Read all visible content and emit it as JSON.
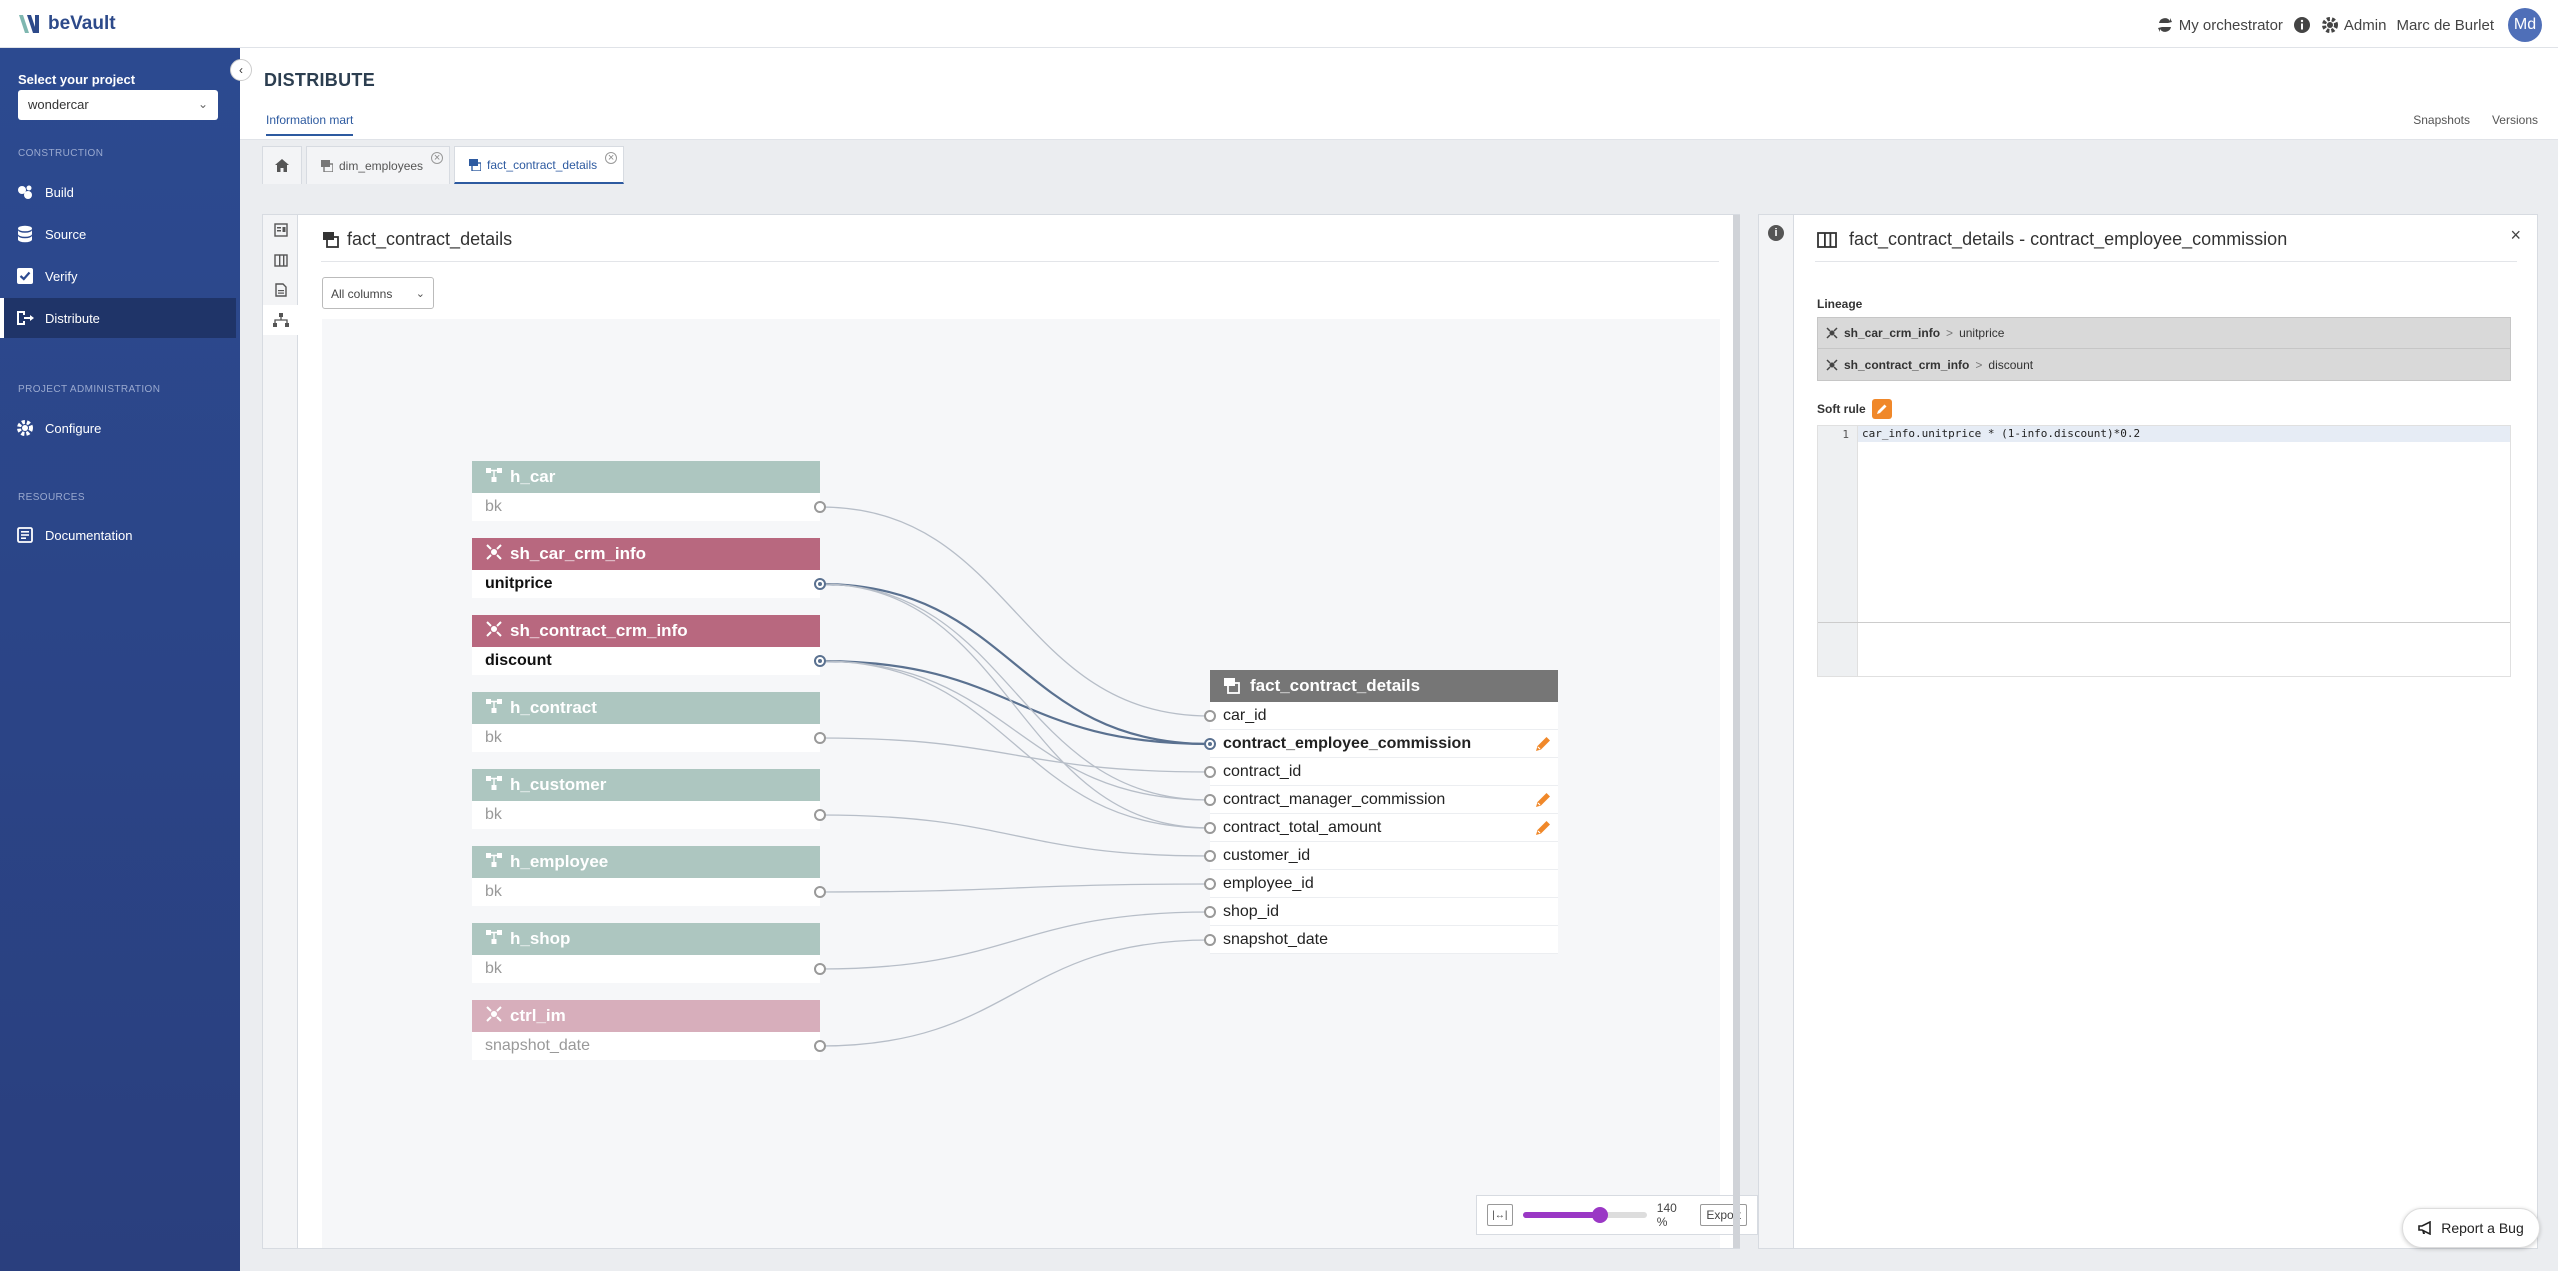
{
  "app": {
    "logo_text": "beVault"
  },
  "topbar": {
    "orchestrator": "My orchestrator",
    "admin": "Admin",
    "user_name": "Marc de Burlet",
    "avatar_initials": "Md"
  },
  "sidebar": {
    "project_label": "Select your project",
    "project_value": "wondercar",
    "sections": {
      "construction": "CONSTRUCTION",
      "project_admin": "PROJECT ADMINISTRATION",
      "resources": "RESOURCES"
    },
    "items": [
      {
        "label": "Build",
        "icon": "build-icon"
      },
      {
        "label": "Source",
        "icon": "database-icon"
      },
      {
        "label": "Verify",
        "icon": "checkbox-icon"
      },
      {
        "label": "Distribute",
        "icon": "distribute-icon",
        "active": true
      },
      {
        "label": "Configure",
        "icon": "gear-icon"
      },
      {
        "label": "Documentation",
        "icon": "book-icon"
      }
    ]
  },
  "header": {
    "title": "DISTRIBUTE",
    "tab": "Information mart",
    "right_links": [
      "Snapshots",
      "Versions"
    ]
  },
  "doc_tabs": [
    {
      "label": "dim_employees"
    },
    {
      "label": "fact_contract_details",
      "active": true
    }
  ],
  "main": {
    "title": "fact_contract_details",
    "columns_filter": "All columns",
    "sources": [
      {
        "name": "h_car",
        "field": "bk",
        "type": "hub"
      },
      {
        "name": "sh_car_crm_info",
        "field": "unitprice",
        "type": "satellite"
      },
      {
        "name": "sh_contract_crm_info",
        "field": "discount",
        "type": "satellite"
      },
      {
        "name": "h_contract",
        "field": "bk",
        "type": "hub"
      },
      {
        "name": "h_customer",
        "field": "bk",
        "type": "hub"
      },
      {
        "name": "h_employee",
        "field": "bk",
        "type": "hub"
      },
      {
        "name": "h_shop",
        "field": "bk",
        "type": "hub"
      },
      {
        "name": "ctrl_im",
        "field": "snapshot_date",
        "type": "control"
      }
    ],
    "fact": {
      "name": "fact_contract_details",
      "columns": [
        "car_id",
        "contract_employee_commission",
        "contract_id",
        "contract_manager_commission",
        "contract_total_amount",
        "customer_id",
        "employee_id",
        "shop_id",
        "snapshot_date"
      ]
    },
    "zoom": {
      "value": "140",
      "unit": "%",
      "fraction": 0.62,
      "export_label": "Export"
    }
  },
  "detail": {
    "title": "fact_contract_details - contract_employee_commission",
    "lineage_label": "Lineage",
    "lineage": [
      {
        "source": "sh_car_crm_info",
        "sep": ">",
        "field": "unitprice"
      },
      {
        "source": "sh_contract_crm_info",
        "sep": ">",
        "field": "discount"
      }
    ],
    "soft_rule_label": "Soft rule",
    "code_line_number": "1",
    "code": "car_info.unitprice * (1-info.discount)*0.2"
  },
  "report_bug": "Report a Bug",
  "colors": {
    "sidebar": "#2c4a90",
    "hub": "#adc6c0",
    "satellite": "#b8687f",
    "control": "#d7aebb",
    "fact_header": "#767676",
    "accent": "#2d5aa0",
    "slider": "#9a38c5",
    "edit": "#f0882a"
  }
}
